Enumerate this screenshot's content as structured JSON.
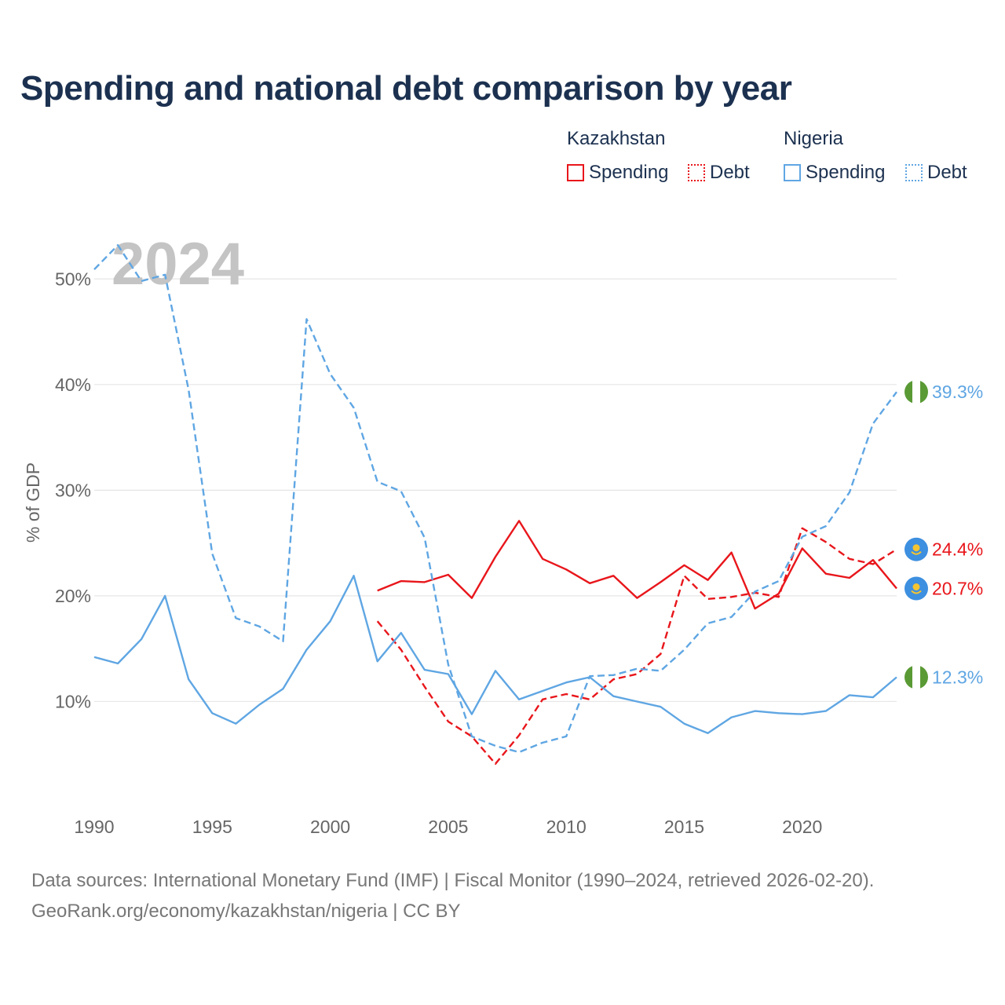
{
  "title": "Spending and national debt comparison by year",
  "legend": {
    "groups": [
      {
        "name": "Kazakhstan",
        "items": [
          "Spending",
          "Debt"
        ]
      },
      {
        "name": "Nigeria",
        "items": [
          "Spending",
          "Debt"
        ]
      }
    ]
  },
  "colors": {
    "kazakhstan": "#e8161b",
    "nigeria": "#5fa6e3",
    "title": "#1c3150",
    "axis_text": "#666666",
    "grid": "#e6e6e6",
    "year_watermark": "#c4c4c4"
  },
  "year_watermark": "2024",
  "source": {
    "line1": "Data sources: International Monetary Fund (IMF) | Fiscal Monitor (1990–2024, retrieved 2026-02-20).",
    "line2": "GeoRank.org/economy/kazakhstan/nigeria | CC BY"
  },
  "chart_data": {
    "type": "line",
    "title": "Spending and national debt comparison by year",
    "xlabel": "",
    "ylabel": "% of GDP",
    "xlim": [
      1990,
      2024
    ],
    "ylim": [
      0,
      55
    ],
    "x_ticks": [
      1990,
      1995,
      2000,
      2005,
      2010,
      2015,
      2020
    ],
    "y_ticks": [
      10,
      20,
      30,
      40,
      50
    ],
    "y_tick_labels": [
      "10%",
      "20%",
      "30%",
      "40%",
      "50%"
    ],
    "grid": true,
    "legend_position": "top-right",
    "series": [
      {
        "name": "Kazakhstan Spending",
        "country": "Kazakhstan",
        "metric": "Spending",
        "dashed": false,
        "x": [
          2002,
          2003,
          2004,
          2005,
          2006,
          2007,
          2008,
          2009,
          2010,
          2011,
          2012,
          2013,
          2014,
          2015,
          2016,
          2017,
          2018,
          2019,
          2020,
          2021,
          2022,
          2023,
          2024
        ],
        "values": [
          20.5,
          21.4,
          21.3,
          22.0,
          19.8,
          23.7,
          27.1,
          23.5,
          22.5,
          21.2,
          21.9,
          19.8,
          21.3,
          22.9,
          21.5,
          24.1,
          18.8,
          20.2,
          24.5,
          22.1,
          21.7,
          23.4,
          20.7
        ],
        "end_label": "20.7%"
      },
      {
        "name": "Kazakhstan Debt",
        "country": "Kazakhstan",
        "metric": "Debt",
        "dashed": true,
        "x": [
          2002,
          2003,
          2004,
          2005,
          2006,
          2007,
          2008,
          2009,
          2010,
          2011,
          2012,
          2013,
          2014,
          2015,
          2016,
          2017,
          2018,
          2019,
          2020,
          2021,
          2022,
          2023,
          2024
        ],
        "values": [
          17.6,
          14.9,
          11.4,
          8.1,
          6.7,
          4.1,
          6.8,
          10.2,
          10.7,
          10.2,
          12.1,
          12.6,
          14.5,
          21.9,
          19.7,
          19.9,
          20.3,
          19.9,
          26.4,
          25.1,
          23.5,
          23.0,
          24.4
        ],
        "end_label": "24.4%"
      },
      {
        "name": "Nigeria Spending",
        "country": "Nigeria",
        "metric": "Spending",
        "dashed": false,
        "x": [
          1990,
          1991,
          1992,
          1993,
          1994,
          1995,
          1996,
          1997,
          1998,
          1999,
          2000,
          2001,
          2002,
          2003,
          2004,
          2005,
          2006,
          2007,
          2008,
          2009,
          2010,
          2011,
          2012,
          2013,
          2014,
          2015,
          2016,
          2017,
          2018,
          2019,
          2020,
          2021,
          2022,
          2023,
          2024
        ],
        "values": [
          14.2,
          13.6,
          15.9,
          20.0,
          12.1,
          8.9,
          7.9,
          9.7,
          11.2,
          14.9,
          17.6,
          21.9,
          13.8,
          16.5,
          13.0,
          12.6,
          8.8,
          12.9,
          10.2,
          11.0,
          11.8,
          12.3,
          10.5,
          10.0,
          9.5,
          7.9,
          7.0,
          8.5,
          9.1,
          8.9,
          8.8,
          9.1,
          10.6,
          10.4,
          12.3
        ],
        "end_label": "12.3%"
      },
      {
        "name": "Nigeria Debt",
        "country": "Nigeria",
        "metric": "Debt",
        "dashed": true,
        "x": [
          1990,
          1991,
          1992,
          1993,
          1994,
          1995,
          1996,
          1997,
          1998,
          1999,
          2000,
          2001,
          2002,
          2003,
          2004,
          2005,
          2006,
          2007,
          2008,
          2009,
          2010,
          2011,
          2012,
          2013,
          2014,
          2015,
          2016,
          2017,
          2018,
          2019,
          2020,
          2021,
          2022,
          2023,
          2024
        ],
        "values": [
          50.9,
          53.2,
          49.8,
          50.4,
          39.5,
          24.0,
          17.9,
          17.1,
          15.7,
          46.2,
          41.0,
          37.8,
          30.8,
          29.9,
          25.5,
          13.5,
          6.7,
          5.8,
          5.2,
          6.1,
          6.7,
          12.4,
          12.5,
          13.1,
          12.9,
          14.9,
          17.4,
          18.0,
          20.4,
          21.4,
          25.6,
          26.6,
          29.8,
          36.3,
          39.3
        ],
        "end_label": "39.3%"
      }
    ]
  }
}
